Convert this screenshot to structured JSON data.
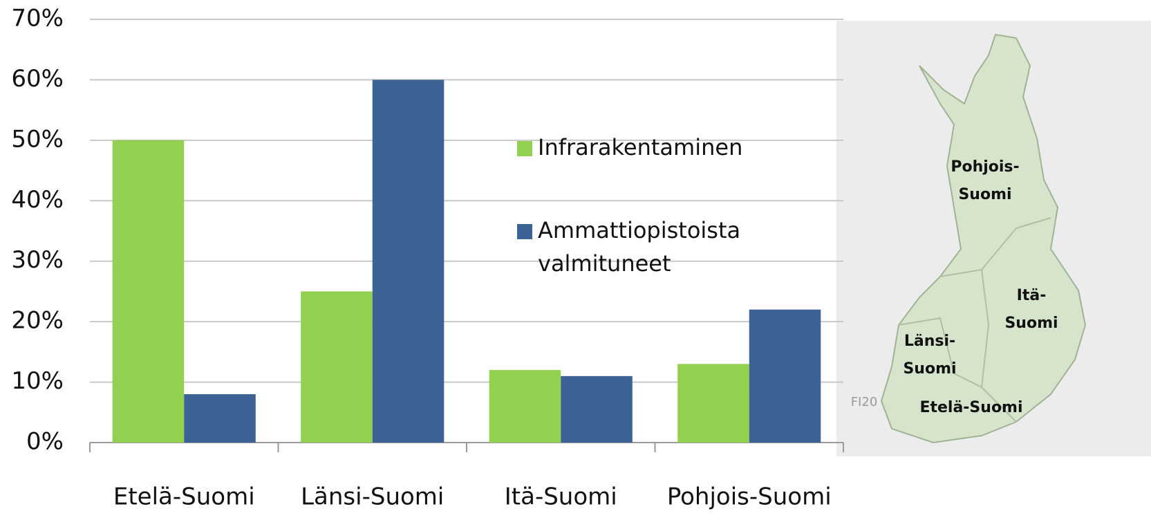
{
  "chart_data": {
    "type": "bar",
    "categories": [
      "Etelä-Suomi",
      "Länsi-Suomi",
      "Itä-Suomi",
      "Pohjois-Suomi"
    ],
    "series": [
      {
        "name": "Infrarakentaminen",
        "color": "#92d050",
        "values": [
          50,
          25,
          12,
          13
        ]
      },
      {
        "name": "Ammattiopistoista valmituneet",
        "color": "#3b6394",
        "values": [
          8,
          60,
          11,
          22
        ]
      }
    ],
    "ylim": [
      0,
      70
    ],
    "yticks": [
      {
        "value": 0,
        "label": "0%"
      },
      {
        "value": 10,
        "label": "10%"
      },
      {
        "value": 20,
        "label": "20%"
      },
      {
        "value": 30,
        "label": "30%"
      },
      {
        "value": 40,
        "label": "40%"
      },
      {
        "value": 50,
        "label": "50%"
      },
      {
        "value": 60,
        "label": "60%"
      },
      {
        "value": 70,
        "label": "70%"
      }
    ],
    "grid": true,
    "map_labels": [
      "Pohjois-\nSuomi",
      "Itä-\nSuomi",
      "Länsi-\nSuomi",
      "Etelä-Suomi",
      "FI20"
    ]
  }
}
